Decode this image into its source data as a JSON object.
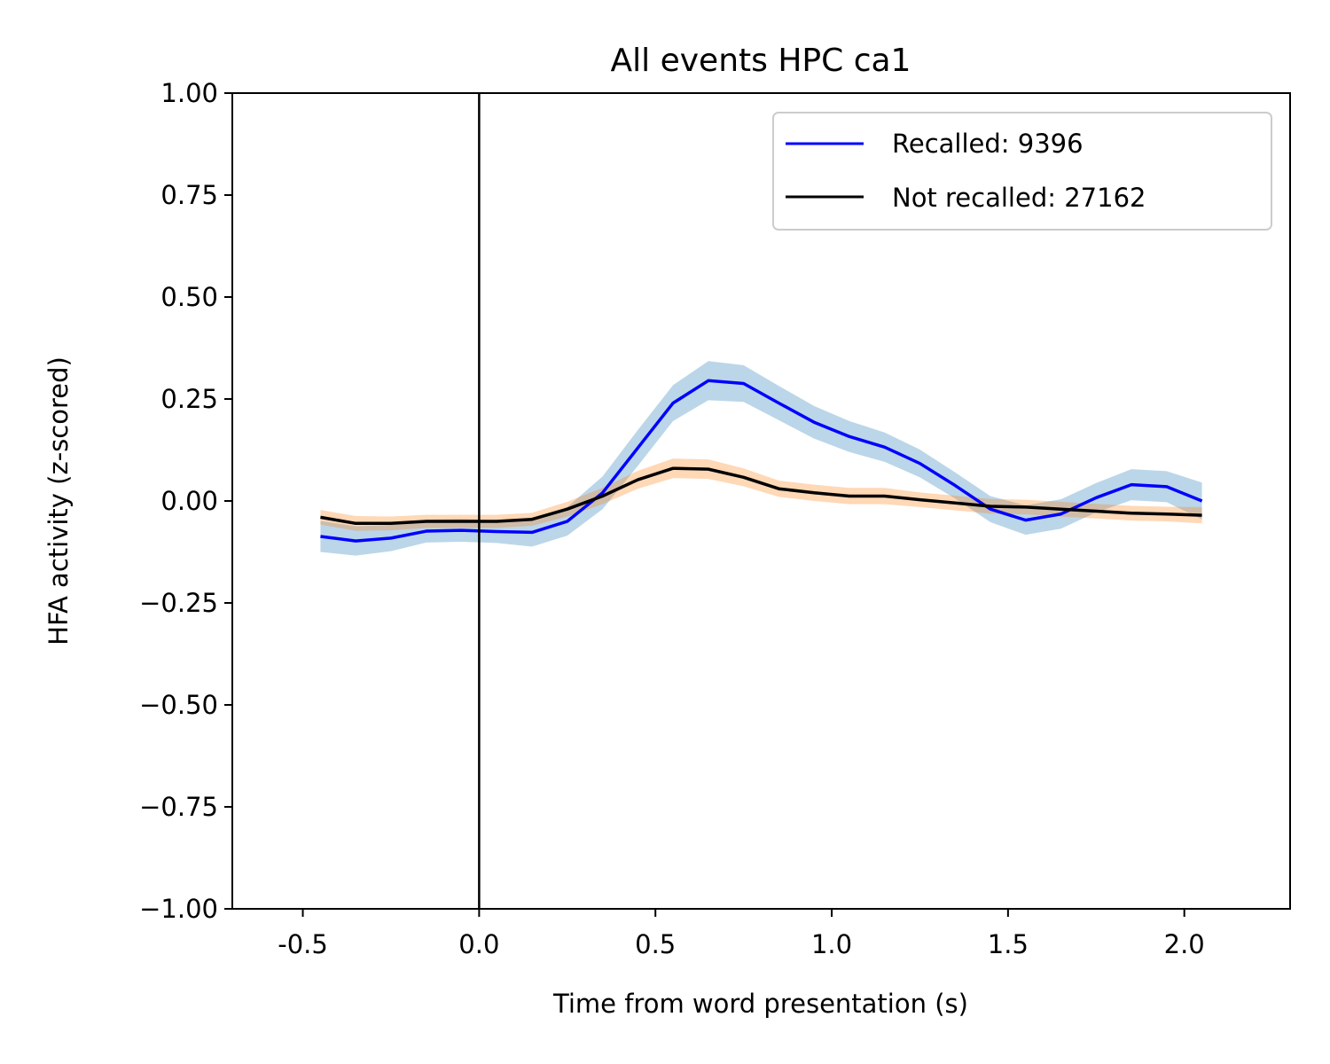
{
  "chart_data": {
    "type": "line",
    "title": "All events HPC ca1",
    "xlabel": "Time from word presentation (s)",
    "ylabel": "HFA activity (z-scored)",
    "xlim": [
      -0.7,
      2.3
    ],
    "ylim": [
      -1.0,
      1.0
    ],
    "x_ticks": [
      -0.5,
      0.0,
      0.5,
      1.0,
      1.5,
      2.0
    ],
    "x_tick_labels": [
      "-0.5",
      "0.0",
      "0.5",
      "1.0",
      "1.5",
      "2.0"
    ],
    "y_ticks": [
      1.0,
      0.75,
      0.5,
      0.25,
      0.0,
      -0.25,
      -0.5,
      -0.75,
      -1.0
    ],
    "y_tick_labels": [
      "1.00",
      "0.75",
      "0.50",
      "0.25",
      "0.00",
      "−0.25",
      "−0.50",
      "−0.75",
      "−1.00"
    ],
    "vline_x": 0.0,
    "grid": false,
    "legend_position": "upper right",
    "x": [
      -0.45,
      -0.35,
      -0.25,
      -0.15,
      -0.05,
      0.05,
      0.15,
      0.25,
      0.35,
      0.45,
      0.55,
      0.65,
      0.75,
      0.85,
      0.95,
      1.05,
      1.15,
      1.25,
      1.35,
      1.45,
      1.55,
      1.65,
      1.75,
      1.85,
      1.95,
      2.05
    ],
    "series": [
      {
        "name": "Recalled: 9396",
        "color": "#0000ff",
        "band_color": "#1f77b4",
        "values": [
          -0.087,
          -0.098,
          -0.091,
          -0.074,
          -0.072,
          -0.075,
          -0.077,
          -0.05,
          0.02,
          0.13,
          0.24,
          0.295,
          0.288,
          0.24,
          0.193,
          0.158,
          0.132,
          0.092,
          0.038,
          -0.02,
          -0.047,
          -0.032,
          0.008,
          0.04,
          0.035,
          0.0
        ],
        "band": [
          0.038,
          0.036,
          0.032,
          0.028,
          0.028,
          0.028,
          0.035,
          0.035,
          0.04,
          0.044,
          0.044,
          0.048,
          0.045,
          0.042,
          0.04,
          0.038,
          0.036,
          0.034,
          0.032,
          0.032,
          0.036,
          0.036,
          0.036,
          0.038,
          0.038,
          0.045
        ]
      },
      {
        "name": "Not recalled: 27162",
        "color": "#000000",
        "band_color": "#ff7f0e",
        "values": [
          -0.04,
          -0.055,
          -0.055,
          -0.05,
          -0.05,
          -0.05,
          -0.045,
          -0.02,
          0.012,
          0.052,
          0.08,
          0.078,
          0.058,
          0.03,
          0.02,
          0.012,
          0.012,
          0.003,
          -0.005,
          -0.013,
          -0.015,
          -0.02,
          -0.025,
          -0.03,
          -0.032,
          -0.035
        ],
        "band": [
          0.018,
          0.018,
          0.017,
          0.016,
          0.016,
          0.016,
          0.016,
          0.018,
          0.02,
          0.022,
          0.024,
          0.024,
          0.022,
          0.02,
          0.02,
          0.02,
          0.02,
          0.018,
          0.018,
          0.018,
          0.018,
          0.018,
          0.018,
          0.018,
          0.018,
          0.02
        ]
      }
    ]
  }
}
